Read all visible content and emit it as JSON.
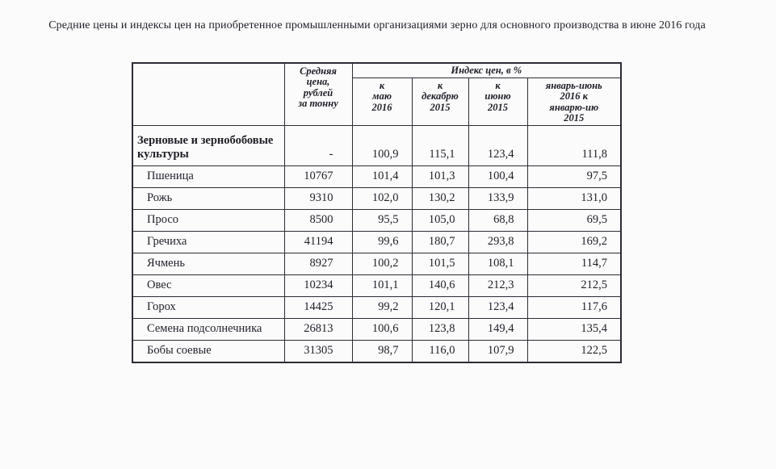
{
  "page": {
    "title": "Средние цены и индексы цен на приобретенное промышленными организациями зерно для основного производства в июне 2016 года"
  },
  "table": {
    "corner_label": "",
    "avg_price_header": "Средняя\nцена,\nрублей\nза тонну",
    "index_group_header": "Индекс цен, в %",
    "sub_headers": [
      "к\nмаю\n2016",
      "к\nдекабрю\n2015",
      "к\nиюню\n2015",
      "январь-июнь\n2016 к\nянварю-ию\n2015"
    ],
    "rows": [
      {
        "label": "Зерновые и зернобобовые культуры",
        "bold": true,
        "avg": "-",
        "values": [
          "100,9",
          "115,1",
          "123,4",
          "111,8"
        ]
      },
      {
        "label": "Пшеница",
        "bold": false,
        "avg": "10767",
        "values": [
          "101,4",
          "101,3",
          "100,4",
          "97,5"
        ]
      },
      {
        "label": "Рожь",
        "bold": false,
        "avg": "9310",
        "values": [
          "102,0",
          "130,2",
          "133,9",
          "131,0"
        ]
      },
      {
        "label": "Просо",
        "bold": false,
        "avg": "8500",
        "values": [
          "95,5",
          "105,0",
          "68,8",
          "69,5"
        ]
      },
      {
        "label": "Гречиха",
        "bold": false,
        "avg": "41194",
        "values": [
          "99,6",
          "180,7",
          "293,8",
          "169,2"
        ]
      },
      {
        "label": "Ячмень",
        "bold": false,
        "avg": "8927",
        "values": [
          "100,2",
          "101,5",
          "108,1",
          "114,7"
        ]
      },
      {
        "label": "Овес",
        "bold": false,
        "avg": "10234",
        "values": [
          "101,1",
          "140,6",
          "212,3",
          "212,5"
        ]
      },
      {
        "label": "Горох",
        "bold": false,
        "avg": "14425",
        "values": [
          "99,2",
          "120,1",
          "123,4",
          "117,6"
        ]
      },
      {
        "label": "Семена подсолнечника",
        "bold": false,
        "avg": "26813",
        "values": [
          "100,6",
          "123,8",
          "149,4",
          "135,4"
        ]
      },
      {
        "label": "Бобы соевые",
        "bold": false,
        "avg": "31305",
        "values": [
          "98,7",
          "116,0",
          "107,9",
          "122,5"
        ]
      }
    ]
  }
}
